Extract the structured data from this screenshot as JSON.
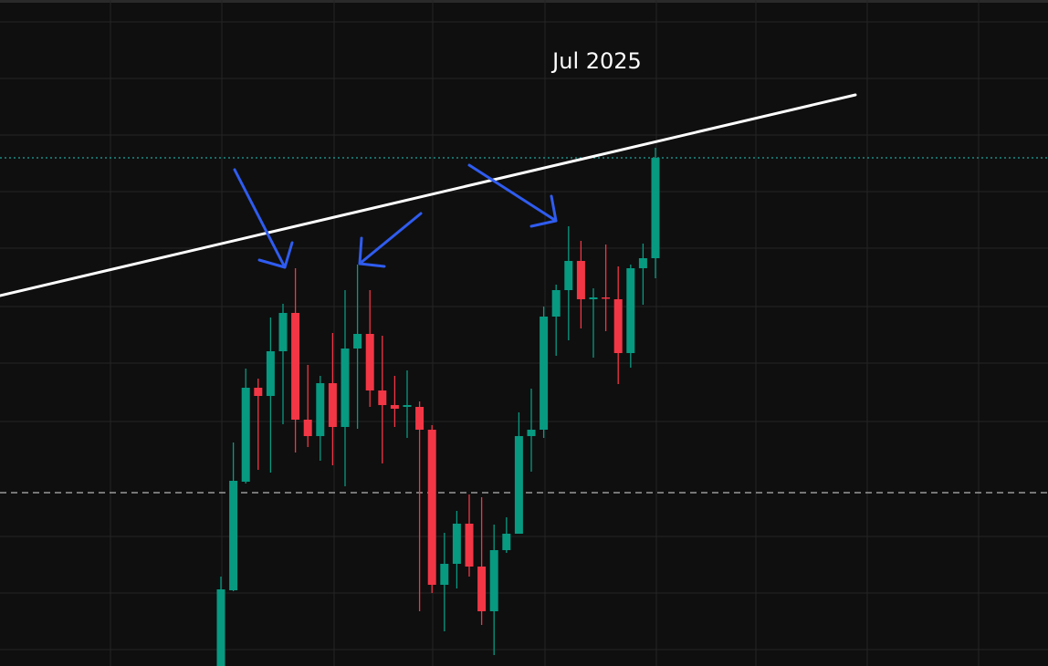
{
  "chart_data": {
    "type": "candlestick",
    "annotation": "Jul 2025",
    "up_color": "#089981",
    "down_color": "#f23645",
    "ylim": [
      0,
      730
    ],
    "open": [
      0,
      83,
      202,
      305,
      296,
      345,
      387,
      270,
      252,
      310,
      262,
      348,
      364,
      302,
      286,
      284,
      284,
      259,
      89,
      112,
      156,
      109,
      60,
      127,
      145,
      252,
      259,
      383,
      412,
      444,
      402,
      404,
      402,
      343,
      436,
      447
    ],
    "high": [
      98,
      245,
      326,
      315,
      382,
      397,
      436,
      330,
      318,
      365,
      412,
      440,
      412,
      362,
      318,
      324,
      290,
      264,
      146,
      170,
      188,
      185,
      155,
      163,
      278,
      304,
      394,
      418,
      482,
      466,
      414,
      462,
      438,
      440,
      463,
      568
    ],
    "low": [
      0,
      82,
      200,
      215,
      212,
      265,
      234,
      240,
      225,
      220,
      197,
      260,
      284,
      222,
      262,
      250,
      60,
      80,
      38,
      85,
      98,
      45,
      12,
      124,
      145,
      213,
      250,
      340,
      357,
      370,
      338,
      367,
      309,
      327,
      396,
      425
    ],
    "close": [
      84,
      203,
      305,
      296,
      345,
      387,
      270,
      252,
      310,
      262,
      348,
      364,
      302,
      286,
      282,
      286,
      259,
      89,
      112,
      156,
      109,
      60,
      127,
      145,
      252,
      259,
      383,
      412,
      444,
      402,
      404,
      403,
      343,
      436,
      447,
      557
    ]
  }
}
